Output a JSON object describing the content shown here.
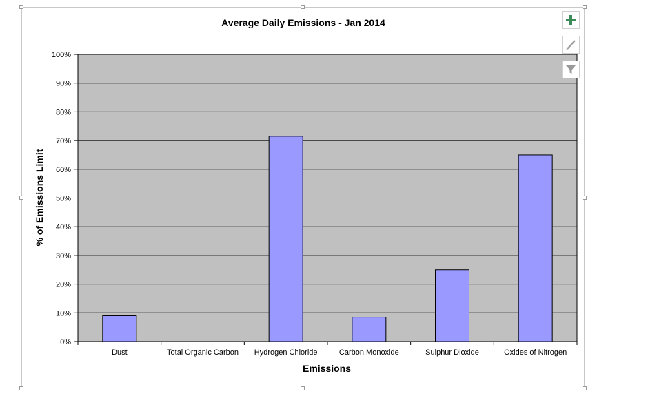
{
  "chart_data": {
    "type": "bar",
    "title": "Average Daily Emissions - Jan 2014",
    "xlabel": "Emissions",
    "ylabel": "% of Emissions Limit",
    "categories": [
      "Dust",
      "Total Organic Carbon",
      "Hydrogen Chloride",
      "Carbon Monoxide",
      "Sulphur Dioxide",
      "Oxides of Nitrogen"
    ],
    "values": [
      9,
      0,
      71.5,
      8.5,
      25,
      65
    ],
    "ylim": [
      0,
      100
    ],
    "yticks": [
      0,
      10,
      20,
      30,
      40,
      50,
      60,
      70,
      80,
      90,
      100
    ],
    "ytick_labels": [
      "0%",
      "10%",
      "20%",
      "30%",
      "40%",
      "50%",
      "60%",
      "70%",
      "80%",
      "90%",
      "100%"
    ],
    "grid": true,
    "legend": "none",
    "bar_color": "#9999ff",
    "plot_background": "#c0c0c0"
  },
  "toolbar": {
    "buttons": [
      {
        "name": "chart-elements-button",
        "icon": "plus-icon"
      },
      {
        "name": "chart-styles-button",
        "icon": "brush-icon"
      },
      {
        "name": "chart-filters-button",
        "icon": "filter-icon"
      }
    ]
  }
}
